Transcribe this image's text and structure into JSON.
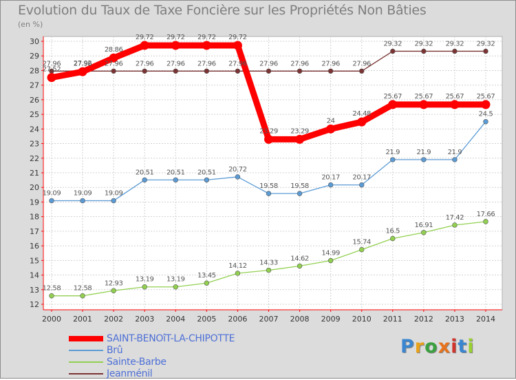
{
  "chart_data": {
    "type": "line",
    "title": "Evolution du Taux de Taxe Foncière sur les Propriétés Non Bâties",
    "subtitle": "(en %)",
    "x": [
      "2000",
      "2001",
      "2002",
      "2003",
      "2004",
      "2005",
      "2006",
      "2007",
      "2008",
      "2009",
      "2010",
      "2011",
      "2012",
      "2013",
      "2014"
    ],
    "ylim": [
      12,
      30
    ],
    "yticks": [
      "12",
      "13",
      "14",
      "15",
      "16",
      "17",
      "18",
      "19",
      "20",
      "21",
      "22",
      "23",
      "24",
      "25",
      "26",
      "27",
      "28",
      "29",
      "30"
    ],
    "grid": true,
    "legend_position": "bottom-left",
    "series": [
      {
        "name": "SAINT-BENOîT-LA-CHIPOTTE",
        "color": "#ff0000",
        "values": [
          27.52,
          27.92,
          28.86,
          29.72,
          29.72,
          29.72,
          29.72,
          23.29,
          23.29,
          24,
          24.48,
          25.67,
          25.67,
          25.67,
          25.67
        ],
        "labels": [
          "27.52",
          "27.92",
          "28.86",
          "29.72",
          "29.72",
          "29.72",
          "29.72",
          "23.29",
          "23.29",
          "24",
          "24.48",
          "25.67",
          "25.67",
          "25.67",
          "25.67"
        ]
      },
      {
        "name": "Brû",
        "color": "#5b9bd5",
        "values": [
          19.09,
          19.09,
          19.09,
          20.51,
          20.51,
          20.51,
          20.72,
          19.58,
          19.58,
          20.17,
          20.17,
          21.9,
          21.9,
          21.9,
          24.5
        ],
        "labels": [
          "19.09",
          "19.09",
          "19.09",
          "20.51",
          "20.51",
          "20.51",
          "20.72",
          "19.58",
          "19.58",
          "20.17",
          "20.17",
          "21.9",
          "21.9",
          "21.9",
          "24.5"
        ]
      },
      {
        "name": "Sainte-Barbe",
        "color": "#92d050",
        "values": [
          12.58,
          12.58,
          12.93,
          13.19,
          13.19,
          13.45,
          14.12,
          14.33,
          14.62,
          14.99,
          15.74,
          16.5,
          16.91,
          17.42,
          17.66
        ],
        "labels": [
          "12.58",
          "12.58",
          "12.93",
          "13.19",
          "13.19",
          "13.45",
          "14.12",
          "14.33",
          "14.62",
          "14.99",
          "15.74",
          "16.5",
          "16.91",
          "17.42",
          "17.66"
        ]
      },
      {
        "name": "Jeanménil",
        "color": "#7b3333",
        "values": [
          27.96,
          27.96,
          27.96,
          27.96,
          27.96,
          27.96,
          27.96,
          27.96,
          27.96,
          27.96,
          27.96,
          29.32,
          29.32,
          29.32,
          29.32
        ],
        "labels": [
          "27.96",
          "27.96",
          "27.96",
          "27.96",
          "27.96",
          "27.96",
          "27.96",
          "27.96",
          "27.96",
          "27.96",
          "27.96",
          "29.32",
          "29.32",
          "29.32",
          "29.32"
        ]
      }
    ]
  },
  "logo": {
    "text": "Proxiti"
  }
}
